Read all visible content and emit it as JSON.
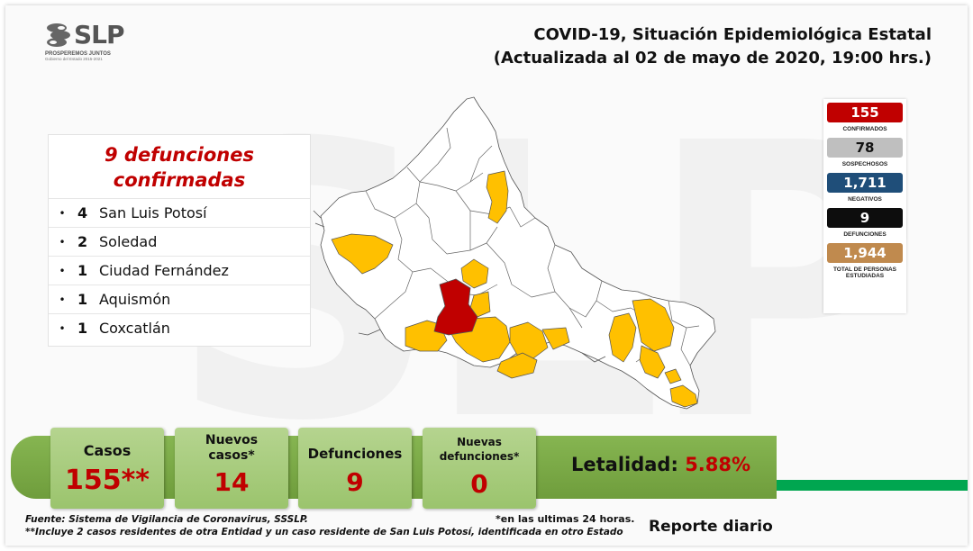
{
  "header": {
    "logo_text": "SLP",
    "logo_tagline": "PROSPEREMOS JUNTOS",
    "logo_subtitle": "Gobierno del Estado 2015-2021",
    "title_line1": "COVID-19, Situación Epidemiológica Estatal",
    "title_line2": "(Actualizada al 02 de mayo de 2020, 19:00 hrs.)"
  },
  "deaths_panel": {
    "title_line1": "9 defunciones",
    "title_line2": "confirmadas",
    "items": [
      {
        "bullet": "•",
        "count": "4",
        "municipality": "San Luis Potosí"
      },
      {
        "bullet": "•",
        "count": "2",
        "municipality": "Soledad"
      },
      {
        "bullet": "•",
        "count": "1",
        "municipality": "Ciudad Fernández"
      },
      {
        "bullet": "•",
        "count": "1",
        "municipality": "Aquismón"
      },
      {
        "bullet": "•",
        "count": "1",
        "municipality": "Coxcatlán"
      }
    ]
  },
  "stats": [
    {
      "value": "155",
      "label": "CONFIRMADOS",
      "color": "#c00000"
    },
    {
      "value": "78",
      "label": "SOSPECHOSOS",
      "color": "#bfbfbf"
    },
    {
      "value": "1,711",
      "label": "NEGATIVOS",
      "color": "#1f4e79"
    },
    {
      "value": "9",
      "label": "DEFUNCIONES",
      "color": "#0d0d0d"
    },
    {
      "value": "1,944",
      "label": "TOTAL DE PERSONAS ESTUDIADAS",
      "color": "#c08a4e"
    }
  ],
  "bottom": {
    "casos_label": "Casos",
    "casos_value": "155**",
    "nuevos_label_1": "Nuevos",
    "nuevos_label_2": "casos*",
    "nuevos_value": "14",
    "defunciones_label": "Defunciones",
    "defunciones_value": "9",
    "nuevas_def_label_1": "Nuevas",
    "nuevas_def_label_2": "defunciones*",
    "nuevas_def_value": "0",
    "letalidad_label": "Letalidad:",
    "letalidad_value": "5.88%"
  },
  "footer": {
    "fuente": "Fuente: Sistema de Vigilancia de Coronavirus, SSSLP.",
    "nota": "**Incluye 2 casos residentes de otra Entidad y un caso residente de San Luis Potosí, identificada en otro Estado",
    "nota_24h": "*en las ultimas 24 horas.",
    "reporte": "Reporte diario"
  },
  "map_colors": {
    "no_cases": "#ffffff",
    "cases": "#ffc000",
    "deaths_high": "#c00000",
    "border": "#555555"
  },
  "watermark": "SLP"
}
